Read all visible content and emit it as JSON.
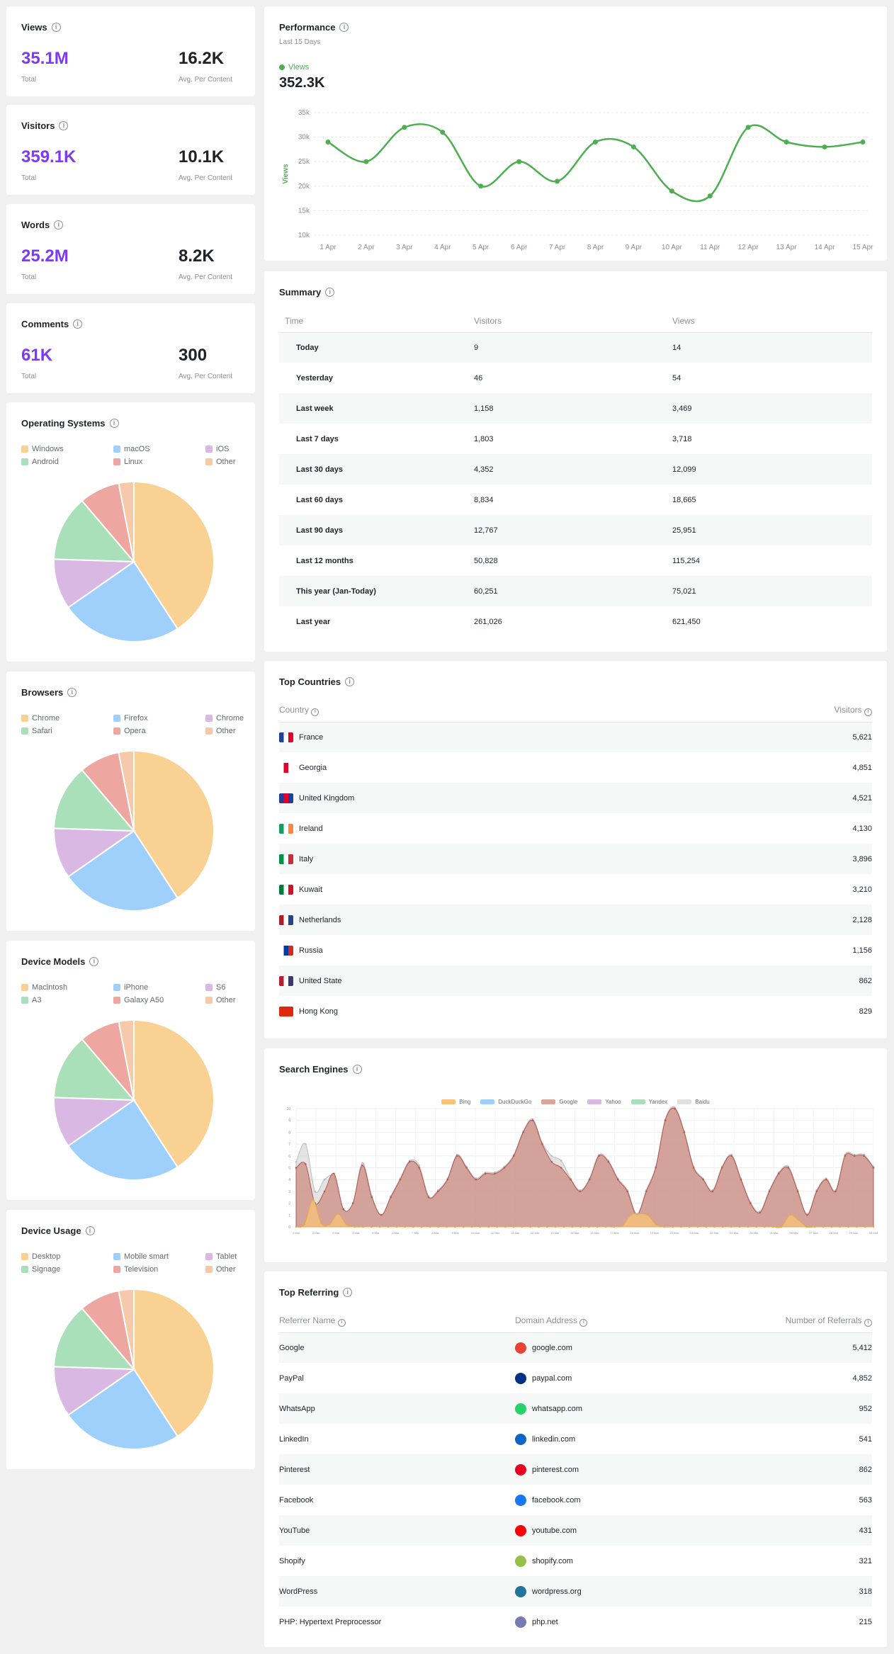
{
  "stats": [
    {
      "title": "Views",
      "total": "35.1M",
      "total_label": "Total",
      "avg": "16.2K",
      "avg_label": "Avg. Per Content"
    },
    {
      "title": "Visitors",
      "total": "359.1K",
      "total_label": "Total",
      "avg": "10.1K",
      "avg_label": "Avg. Per Content"
    },
    {
      "title": "Words",
      "total": "25.2M",
      "total_label": "Total",
      "avg": "8.2K",
      "avg_label": "Avg. Per Content"
    },
    {
      "title": "Comments",
      "total": "61K",
      "total_label": "Total",
      "avg": "300",
      "avg_label": "Avg. Per Content"
    }
  ],
  "pies": [
    {
      "title": "Operating Systems",
      "labels": [
        "Windows",
        "macOS",
        "iOS",
        "Android",
        "Linux",
        "Other"
      ]
    },
    {
      "title": "Browsers",
      "labels": [
        "Chrome",
        "Firefox",
        "Chrome",
        "Safari",
        "Opera",
        "Other"
      ]
    },
    {
      "title": "Device Models",
      "labels": [
        "Macintosh",
        "iPhone",
        "S6",
        "A3",
        "Galaxy A50",
        "Other"
      ]
    },
    {
      "title": "Device Usage",
      "labels": [
        "Desktop",
        "Mobile smart",
        "Tablet",
        "Signage",
        "Television",
        "Other"
      ]
    }
  ],
  "pie_values": [
    40,
    24,
    10,
    13,
    8,
    3
  ],
  "pie_colors": [
    "#f8d193",
    "#9fd0fb",
    "#d9b8e4",
    "#a9e0b9",
    "#eda6a0",
    "#f6c9a8"
  ],
  "performance": {
    "title": "Performance",
    "subtitle": "Last 15 Days",
    "legend": "Views",
    "value": "352.3K",
    "ylabel": "Views",
    "color": "#4caf50"
  },
  "chart_data": [
    {
      "type": "line",
      "title": "Performance",
      "x": [
        "1 Apr",
        "2 Apr",
        "3 Apr",
        "4 Apr",
        "5 Apr",
        "6 Apr",
        "7 Apr",
        "8 Apr",
        "9 Apr",
        "10 Apr",
        "11 Apr",
        "12 Apr",
        "13 Apr",
        "14 Apr",
        "15 Apr"
      ],
      "series": [
        {
          "name": "Views",
          "values": [
            29,
            25,
            32,
            31,
            20,
            25,
            21,
            29,
            28,
            19,
            18,
            32,
            29,
            28,
            29
          ]
        }
      ],
      "yticks": [
        "10k",
        "15k",
        "20k",
        "25k",
        "30k",
        "35k"
      ],
      "ylim": [
        10,
        35
      ],
      "ylabel": "Views"
    },
    {
      "type": "area",
      "title": "Search Engines",
      "series": [
        {
          "name": "Bing",
          "color": "#f8c27a",
          "values": [
            0,
            0.2,
            2.3,
            0.3,
            0.2,
            1.1,
            0.2,
            0,
            0,
            0,
            0,
            0,
            0,
            0,
            0,
            0,
            0,
            0,
            0,
            0,
            0,
            0,
            0,
            0,
            0,
            0,
            0,
            0,
            0,
            0,
            0,
            0,
            0,
            0,
            0,
            0,
            0,
            0,
            0,
            0.1,
            1,
            1.1,
            1,
            0.2,
            0,
            0,
            0,
            0,
            0,
            0,
            0,
            0,
            0,
            0,
            0,
            0,
            0,
            0,
            0,
            1,
            0.6,
            0,
            0,
            0,
            0,
            0,
            0,
            0,
            0,
            0
          ]
        },
        {
          "name": "DuckDuckGo",
          "color": "#9fd0fb",
          "values": []
        },
        {
          "name": "Google",
          "color": "#d9a49b",
          "values": [
            5,
            5.3,
            2,
            3,
            4.5,
            1.5,
            2,
            5.2,
            2.5,
            1,
            2.5,
            4,
            5.5,
            5,
            2.5,
            3,
            4,
            6,
            5,
            4,
            4.5,
            4.5,
            5,
            6,
            8,
            9,
            7,
            5.5,
            5,
            4,
            3,
            4,
            6,
            5.5,
            4,
            3,
            1,
            3,
            5,
            9,
            10,
            8,
            5,
            4,
            3,
            5,
            6,
            4,
            2,
            1.2,
            3,
            4.5,
            5,
            3,
            1,
            3,
            4,
            3,
            6,
            6,
            6,
            5
          ]
        },
        {
          "name": "Yahoo",
          "color": "#d9b8e4",
          "values": []
        },
        {
          "name": "Yandex",
          "color": "#a9e0b9",
          "values": []
        },
        {
          "name": "Baidu",
          "color": "#e0e0e0",
          "values": [
            5.5,
            7,
            3,
            4,
            4.2,
            1.5,
            2,
            5.4,
            2.6,
            1,
            2.6,
            4.1,
            5.6,
            5.2,
            2.6,
            3.1,
            4.1,
            6.1,
            5.1,
            4.1,
            4.6,
            4.6,
            5.1,
            6.1,
            8.1,
            9.1,
            7.1,
            6,
            5.6,
            4.1,
            3.1,
            4.1,
            6.1,
            5.6,
            4.1,
            3.1,
            1.1,
            3.1,
            5.1,
            9.1,
            10.1,
            8.1,
            5.1,
            4.1,
            3.1,
            5.1,
            6.1,
            4.1,
            2.1,
            1.3,
            3.1,
            4.6,
            5.1,
            3.1,
            1.1,
            3.1,
            4.1,
            3.1,
            6.1,
            6.1,
            6.1,
            5.1
          ]
        }
      ]
    }
  ],
  "se_legend": [
    "Bing",
    "DuckDuckGo",
    "Google",
    "Yahoo",
    "Yandex",
    "Baidu"
  ],
  "se_title": "Search Engines",
  "summary": {
    "title": "Summary",
    "headers": [
      "Time",
      "Visitors",
      "Views"
    ],
    "rows": [
      [
        "Today",
        "9",
        "14"
      ],
      [
        "Yesterday",
        "46",
        "54"
      ],
      [
        "Last week",
        "1,158",
        "3,469"
      ],
      [
        "Last 7 days",
        "1,803",
        "3,718"
      ],
      [
        "Last 30 days",
        "4,352",
        "12,099"
      ],
      [
        "Last 60 days",
        "8,834",
        "18,665"
      ],
      [
        "Last 90 days",
        "12,767",
        "25,951"
      ],
      [
        "Last 12 months",
        "50,828",
        "115,254"
      ],
      [
        "This year (Jan-Today)",
        "60,251",
        "75,021"
      ],
      [
        "Last year",
        "261,026",
        "621,450"
      ]
    ]
  },
  "countries": {
    "title": "Top Countries",
    "headers": [
      "Country",
      "Visitors"
    ],
    "rows": [
      {
        "name": "France",
        "value": "5,621",
        "flag": [
          "#1f3f99",
          "#ffffff",
          "#e4002b"
        ]
      },
      {
        "name": "Georgia",
        "value": "4,851",
        "flag": [
          "#ffffff",
          "#e4002b",
          "#ffffff"
        ]
      },
      {
        "name": "United Kingdom",
        "value": "4,521",
        "flag": [
          "#1f3f99",
          "#e4002b",
          "#1f3f99"
        ]
      },
      {
        "name": "Ireland",
        "value": "4,130",
        "flag": [
          "#169b62",
          "#ffffff",
          "#ff883e"
        ]
      },
      {
        "name": "Italy",
        "value": "3,896",
        "flag": [
          "#009246",
          "#ffffff",
          "#ce2b37"
        ]
      },
      {
        "name": "Kuwait",
        "value": "3,210",
        "flag": [
          "#007a3d",
          "#ffffff",
          "#ce1126"
        ]
      },
      {
        "name": "Netherlands",
        "value": "2,128",
        "flag": [
          "#ae1c28",
          "#ffffff",
          "#21468b"
        ]
      },
      {
        "name": "Russia",
        "value": "1,156",
        "flag": [
          "#ffffff",
          "#0039a6",
          "#d52b1e"
        ]
      },
      {
        "name": "United State",
        "value": "862",
        "flag": [
          "#b22234",
          "#ffffff",
          "#3c3b6e"
        ]
      },
      {
        "name": "Hong Kong",
        "value": "829",
        "flag": [
          "#de2910",
          "#de2910",
          "#de2910"
        ]
      }
    ]
  },
  "referring": {
    "title": "Top Referring",
    "headers": [
      "Referrer Name",
      "Domain Address",
      "Number of Referrals"
    ],
    "rows": [
      {
        "name": "Google",
        "domain": "google.com",
        "value": "5,412",
        "color": "#ea4335"
      },
      {
        "name": "PayPal",
        "domain": "paypal.com",
        "value": "4,852",
        "color": "#003087"
      },
      {
        "name": "WhatsApp",
        "domain": "whatsapp.com",
        "value": "952",
        "color": "#25d366"
      },
      {
        "name": "LinkedIn",
        "domain": "linkedin.com",
        "value": "541",
        "color": "#0a66c2"
      },
      {
        "name": "Pinterest",
        "domain": "pinterest.com",
        "value": "862",
        "color": "#e60023"
      },
      {
        "name": "Facebook",
        "domain": "facebook.com",
        "value": "563",
        "color": "#1877f2"
      },
      {
        "name": "YouTube",
        "domain": "youtube.com",
        "value": "431",
        "color": "#ff0000"
      },
      {
        "name": "Shopify",
        "domain": "shopify.com",
        "value": "321",
        "color": "#96bf48"
      },
      {
        "name": "WordPress",
        "domain": "wordpress.org",
        "value": "318",
        "color": "#21759b"
      },
      {
        "name": "PHP: Hypertext Preprocessor",
        "domain": "php.net",
        "value": "215",
        "color": "#777bb4"
      }
    ]
  }
}
